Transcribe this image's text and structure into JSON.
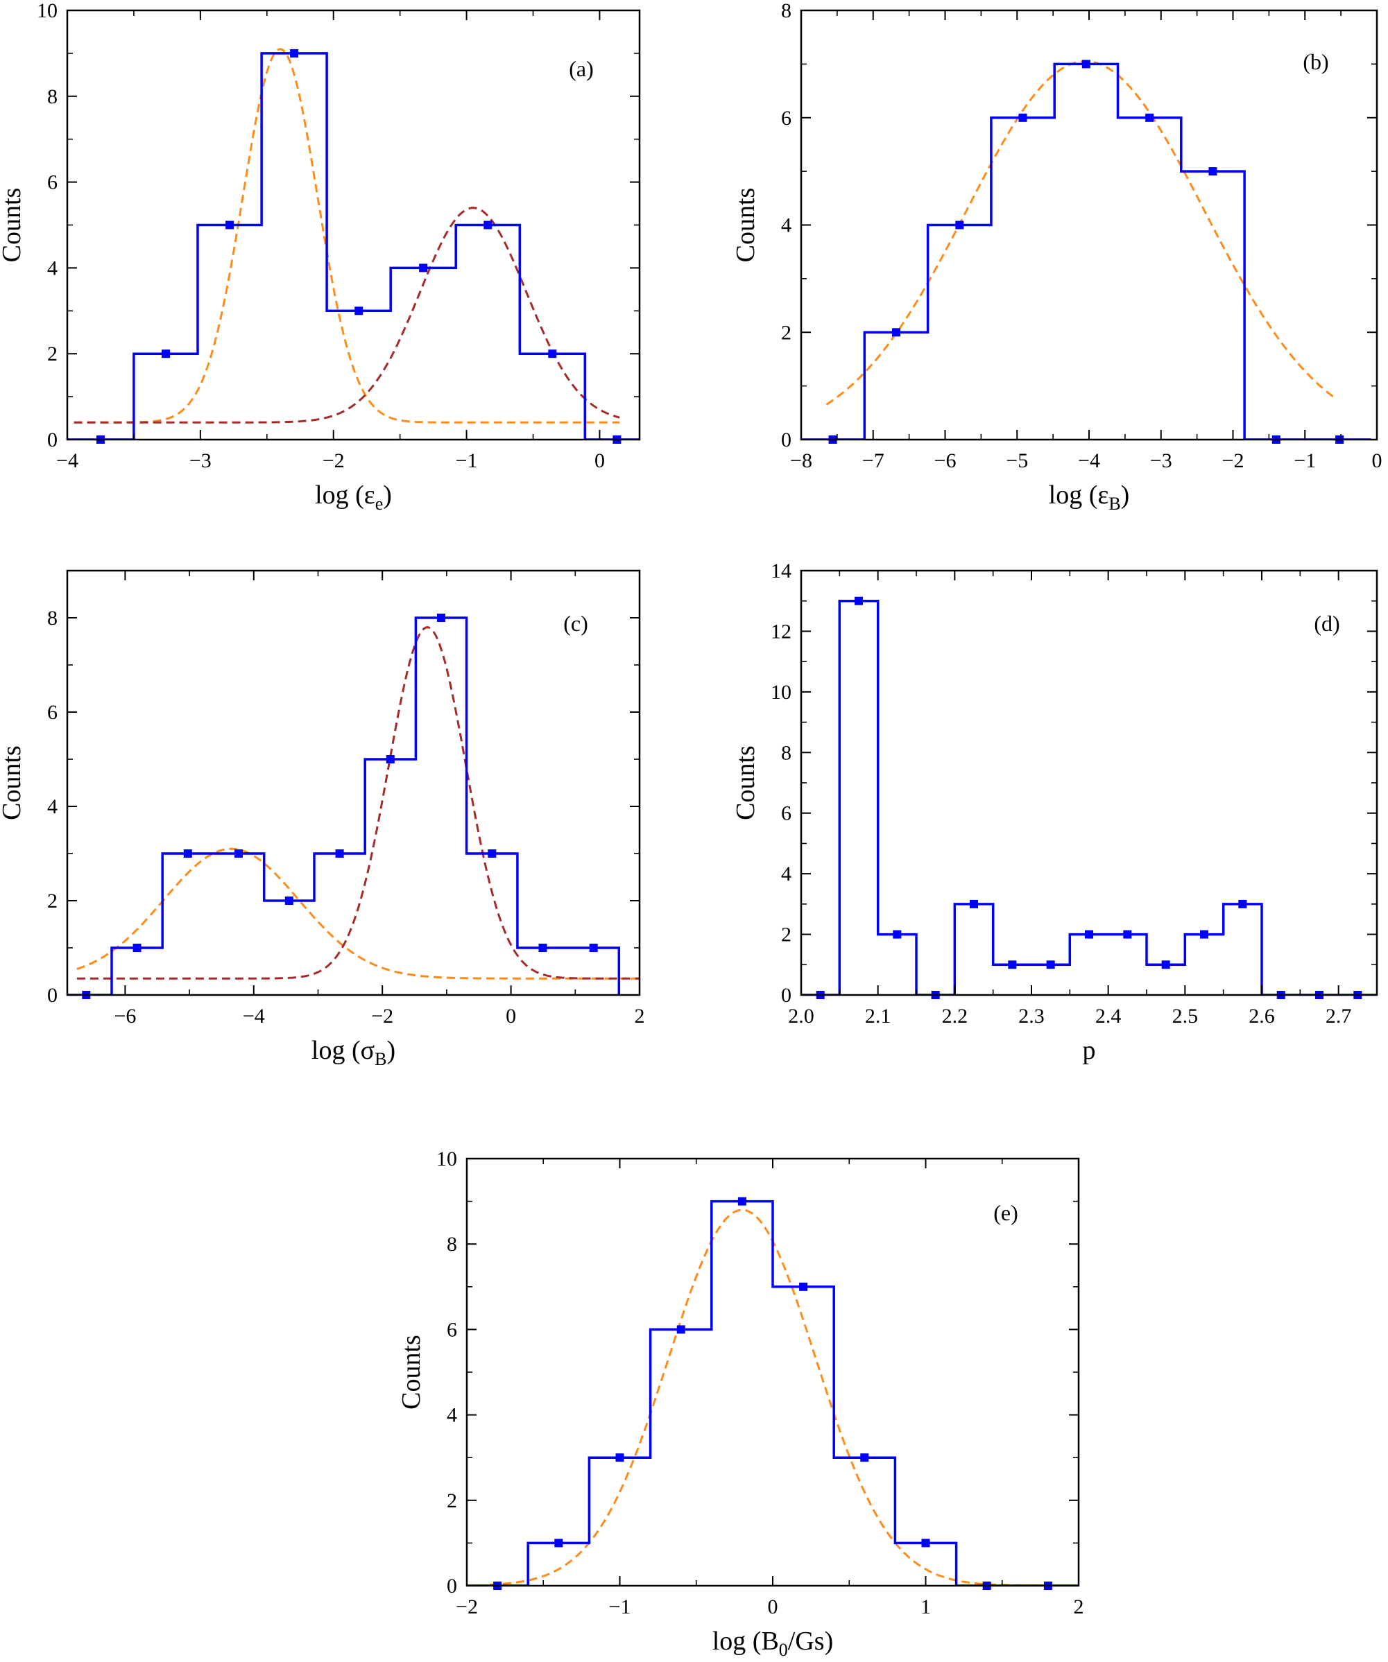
{
  "colors": {
    "histogram": "#0000ff",
    "fit_orange": "#ff8c1a",
    "fit_darkred": "#a52a2a",
    "axis": "#000000"
  },
  "chart_data": [
    {
      "type": "bar",
      "tag": "(a)",
      "ylabel": "Counts",
      "xlabel": {
        "prefix": "log (",
        "symbol": "ε",
        "sub": "e",
        "suffix": ")"
      },
      "xlim": [
        -4,
        0.3
      ],
      "ylim": [
        0,
        10
      ],
      "xticks": [
        -4,
        -3,
        -2,
        -1,
        0
      ],
      "yticks": [
        0,
        2,
        4,
        6,
        8,
        10
      ],
      "bin_edges": [
        -4.0,
        -3.5,
        -3.02,
        -2.54,
        -2.05,
        -1.57,
        -1.08,
        -0.6,
        -0.11,
        0.37
      ],
      "counts": [
        0,
        2,
        5,
        9,
        3,
        4,
        5,
        2,
        0
      ],
      "gaussian_fits": [
        {
          "color": "fit_orange",
          "amp": 8.7,
          "mu": -2.4,
          "sigma": 0.28,
          "base": 0.4,
          "xrange": [
            -3.95,
            0.15
          ]
        },
        {
          "color": "fit_darkred",
          "amp": 5.0,
          "mu": -0.95,
          "sigma": 0.4,
          "base": 0.4,
          "xrange": [
            -3.95,
            0.15
          ]
        }
      ]
    },
    {
      "type": "bar",
      "tag": "(b)",
      "ylabel": "Counts",
      "xlabel": {
        "prefix": "log (",
        "symbol": "ε",
        "sub": "B",
        "suffix": ")"
      },
      "xlim": [
        -8,
        0
      ],
      "ylim": [
        0,
        8
      ],
      "xticks": [
        -8,
        -7,
        -6,
        -5,
        -4,
        -3,
        -2,
        -1,
        0
      ],
      "yticks": [
        0,
        2,
        4,
        6,
        8
      ],
      "bin_edges": [
        -8.0,
        -7.12,
        -6.24,
        -5.36,
        -4.48,
        -3.6,
        -2.72,
        -1.84,
        -0.96,
        -0.08
      ],
      "counts": [
        0,
        2,
        4,
        6,
        7,
        6,
        5,
        0,
        0
      ],
      "gaussian_fits": [
        {
          "color": "fit_orange",
          "amp": 7.05,
          "mu": -4.05,
          "sigma": 1.65,
          "base": 0,
          "xrange": [
            -7.65,
            -0.6
          ]
        }
      ]
    },
    {
      "type": "bar",
      "tag": "(c)",
      "ylabel": "Counts",
      "xlabel": {
        "prefix": "log (",
        "symbol": "σ",
        "sub": "B",
        "suffix": ")"
      },
      "xlim": [
        -6.9,
        2
      ],
      "ylim": [
        0,
        9
      ],
      "xticks": [
        -6,
        -4,
        -2,
        0,
        2
      ],
      "yticks": [
        0,
        2,
        4,
        6,
        8
      ],
      "bin_edges": [
        -7.0,
        -6.21,
        -5.42,
        -4.63,
        -3.84,
        -3.06,
        -2.27,
        -1.48,
        -0.69,
        0.1,
        0.89,
        1.68
      ],
      "counts": [
        0,
        1,
        3,
        3,
        2,
        3,
        5,
        8,
        3,
        1,
        1
      ],
      "gaussian_fits": [
        {
          "color": "fit_orange",
          "amp": 2.75,
          "mu": -4.35,
          "sigma": 1.05,
          "base": 0.35,
          "xrange": [
            -6.75,
            2.0
          ]
        },
        {
          "color": "fit_darkred",
          "amp": 7.45,
          "mu": -1.3,
          "sigma": 0.6,
          "base": 0.35,
          "xrange": [
            -6.75,
            2.0
          ]
        }
      ]
    },
    {
      "type": "bar",
      "tag": "(d)",
      "ylabel": "Counts",
      "xlabel": {
        "prefix": "p",
        "symbol": "",
        "sub": "",
        "suffix": ""
      },
      "xlim": [
        2.0,
        2.75
      ],
      "ylim": [
        0,
        14
      ],
      "xticks": [
        2.0,
        2.1,
        2.2,
        2.3,
        2.4,
        2.5,
        2.6,
        2.7
      ],
      "xtick_labels": [
        "2.0",
        "2.1",
        "2.2",
        "2.3",
        "2.4",
        "2.5",
        "2.6",
        "2.7"
      ],
      "yticks": [
        0,
        2,
        4,
        6,
        8,
        10,
        12,
        14
      ],
      "bin_edges": [
        2.0,
        2.05,
        2.1,
        2.15,
        2.2,
        2.25,
        2.3,
        2.35,
        2.4,
        2.45,
        2.5,
        2.55,
        2.6,
        2.65,
        2.7,
        2.75
      ],
      "counts": [
        0,
        13,
        2,
        0,
        3,
        1,
        1,
        2,
        2,
        1,
        2,
        3,
        0,
        0,
        0
      ],
      "gaussian_fits": []
    },
    {
      "type": "bar",
      "tag": "(e)",
      "ylabel": "Counts",
      "xlabel": {
        "prefix": "log (B",
        "symbol": "",
        "sub": "0",
        "suffix": "/Gs)"
      },
      "xlim": [
        -2,
        2
      ],
      "ylim": [
        0,
        10
      ],
      "xticks": [
        -2,
        -1,
        0,
        1,
        2
      ],
      "yticks": [
        0,
        2,
        4,
        6,
        8,
        10
      ],
      "bin_edges": [
        -2.0,
        -1.6,
        -1.2,
        -0.8,
        -0.4,
        0.0,
        0.4,
        0.8,
        1.2,
        1.6,
        2.0
      ],
      "counts": [
        0,
        1,
        3,
        6,
        9,
        7,
        3,
        1,
        0,
        0
      ],
      "gaussian_fits": [
        {
          "color": "fit_orange",
          "amp": 8.8,
          "mu": -0.2,
          "sigma": 0.48,
          "base": 0,
          "xrange": [
            -1.85,
            1.75
          ]
        }
      ]
    }
  ]
}
